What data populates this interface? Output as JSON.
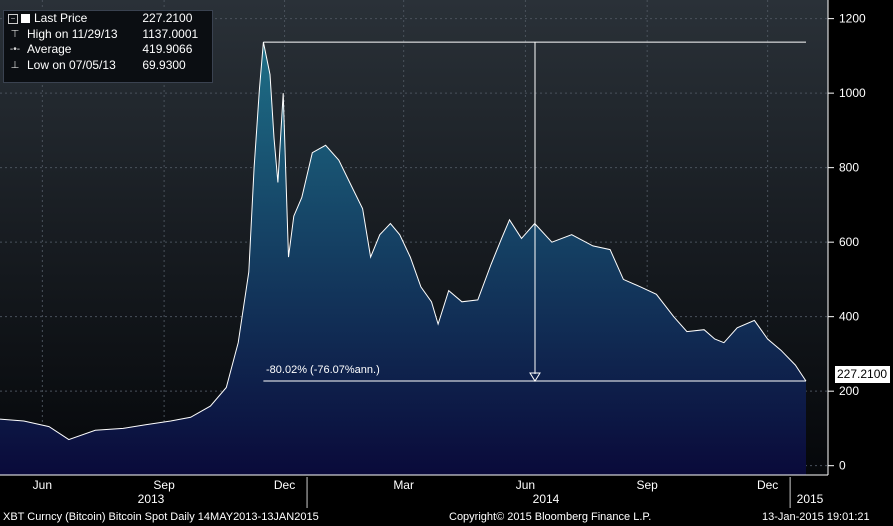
{
  "legend": {
    "last_price": {
      "label": "Last Price",
      "value": "227.2100"
    },
    "high": {
      "label": "High on 11/29/13",
      "value": "1137.0001"
    },
    "average": {
      "label": "Average",
      "value": "419.9066"
    },
    "low": {
      "label": "Low on 07/05/13",
      "value": "69.9300"
    }
  },
  "annotation": {
    "text": "-80.02% (-76.07%ann.)"
  },
  "last_value_tag": "227.2100",
  "footer": {
    "left": "XBT Curncy (Bitcoin) Bitcoin Spot  Daily 14MAY2013-13JAN2015",
    "center": "Copyright© 2015 Bloomberg Finance L.P.",
    "right": "13-Jan-2015 19:01:21"
  },
  "colors": {
    "area_top": "#1e6f87",
    "area_bottom": "#0a0a3a",
    "line": "#ffffff",
    "background": "#000000"
  },
  "chart_data": {
    "type": "area",
    "title": "",
    "xlabel": "",
    "ylabel": "",
    "ylim": [
      -25,
      1250
    ],
    "y_ticks": [
      "0",
      "200",
      "400",
      "600",
      "800",
      "1000",
      "1200"
    ],
    "x_month_ticks": [
      "Jun",
      "Sep",
      "Dec",
      "Mar",
      "Jun",
      "Sep",
      "Dec"
    ],
    "x_year_labels": [
      "2013",
      "2014",
      "2015"
    ],
    "grid": true,
    "series": [
      {
        "x": [
          "2013-05-14",
          "2013-06-01",
          "2013-06-20",
          "2013-07-05",
          "2013-07-25",
          "2013-08-15",
          "2013-09-01",
          "2013-09-20",
          "2013-10-05",
          "2013-10-20",
          "2013-11-01",
          "2013-11-10",
          "2013-11-18",
          "2013-11-22",
          "2013-11-26",
          "2013-11-29",
          "2013-12-04",
          "2013-12-07",
          "2013-12-10",
          "2013-12-14",
          "2013-12-18",
          "2013-12-22",
          "2013-12-28",
          "2014-01-05",
          "2014-01-15",
          "2014-01-25",
          "2014-02-05",
          "2014-02-12",
          "2014-02-18",
          "2014-02-25",
          "2014-03-05",
          "2014-03-12",
          "2014-03-20",
          "2014-03-28",
          "2014-04-05",
          "2014-04-10",
          "2014-04-18",
          "2014-04-28",
          "2014-05-10",
          "2014-05-20",
          "2014-05-28",
          "2014-06-03",
          "2014-06-12",
          "2014-06-22",
          "2014-07-05",
          "2014-07-20",
          "2014-08-05",
          "2014-08-18",
          "2014-08-28",
          "2014-09-10",
          "2014-09-22",
          "2014-10-05",
          "2014-10-15",
          "2014-10-28",
          "2014-11-05",
          "2014-11-12",
          "2014-11-22",
          "2014-12-05",
          "2014-12-15",
          "2014-12-25",
          "2015-01-05",
          "2015-01-13"
        ],
        "values": [
          125,
          120,
          105,
          70,
          95,
          100,
          110,
          120,
          130,
          160,
          210,
          330,
          520,
          800,
          1010,
          1137,
          1050,
          880,
          760,
          1000,
          560,
          670,
          720,
          840,
          860,
          820,
          740,
          690,
          560,
          620,
          650,
          620,
          560,
          480,
          440,
          380,
          470,
          440,
          445,
          540,
          610,
          660,
          610,
          650,
          600,
          620,
          590,
          580,
          500,
          480,
          460,
          400,
          360,
          365,
          340,
          330,
          370,
          390,
          340,
          310,
          270,
          227
        ]
      }
    ]
  }
}
